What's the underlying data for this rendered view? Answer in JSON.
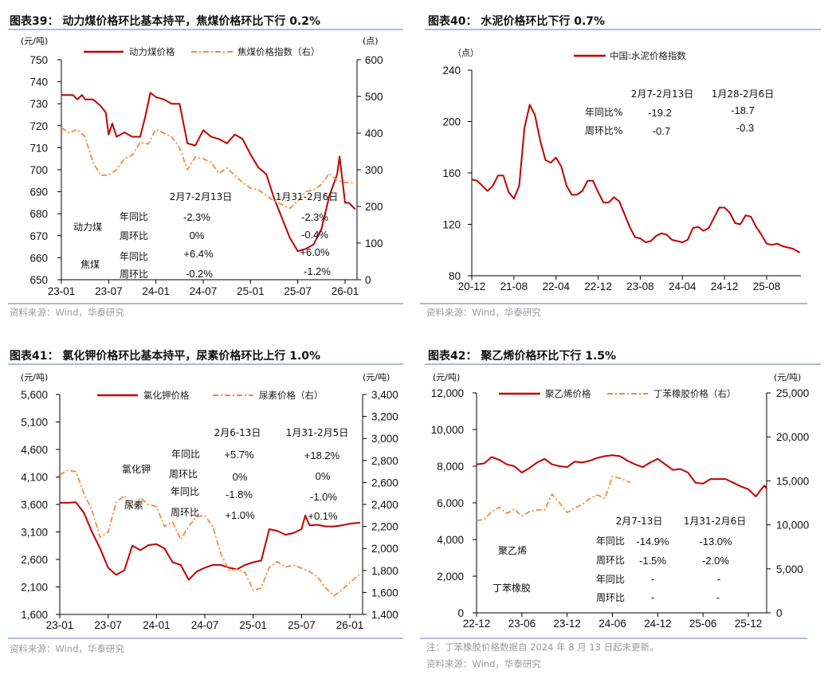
{
  "colors": {
    "primary_line": "#c00000",
    "secondary_line": "#f28a3c",
    "rule": "#7f93b5",
    "source_text": "#9a9a9a"
  },
  "source": "资料来源：Wind，华泰研究",
  "chart_data": [
    {
      "type": "line",
      "title": "图表39：  动力煤价格环比基本持平，焦煤价格环比下行 0.2%",
      "left_unit": "(元/吨)",
      "right_unit": "(点)",
      "x_ticks": [
        "23-01",
        "23-07",
        "24-01",
        "24-07",
        "25-01",
        "25-07",
        "26-01"
      ],
      "left_ylim": [
        650,
        750
      ],
      "left_ticks": [
        "650",
        "660",
        "670",
        "680",
        "690",
        "700",
        "710",
        "720",
        "730",
        "740",
        "750"
      ],
      "right_ylim": [
        0,
        600
      ],
      "right_ticks": [
        "0",
        "100",
        "200",
        "300",
        "400",
        "500",
        "600"
      ],
      "legend_position": "top",
      "series": [
        {
          "name": "动力煤价格",
          "axis": "left",
          "style": "solid",
          "x": [
            "2023-01",
            "2023-02-15",
            "2023-03",
            "2023-03-20",
            "2023-04",
            "2023-05",
            "2023-06",
            "2023-06-20",
            "2023-07",
            "2023-07-15",
            "2023-08",
            "2023-09",
            "2023-10",
            "2023-11",
            "2023-11-20",
            "2023-12-10",
            "2024-01",
            "2024-02",
            "2024-03",
            "2024-04",
            "2024-05",
            "2024-06",
            "2024-07",
            "2024-08",
            "2024-09",
            "2024-10",
            "2024-11",
            "2024-12",
            "2025-01",
            "2025-02",
            "2025-03",
            "2025-04",
            "2025-05",
            "2025-06",
            "2025-07",
            "2025-08",
            "2025-09",
            "2025-10",
            "2025-11",
            "2025-12",
            "2025-12-10",
            "2026-01",
            "2026-01-15",
            "2026-02-10"
          ],
          "y": [
            734,
            734,
            732,
            734,
            732,
            732,
            729,
            726,
            716,
            721,
            715,
            717,
            715,
            715,
            724,
            735,
            733,
            732,
            730,
            730,
            712,
            711,
            718,
            715,
            714,
            712,
            716,
            714,
            707,
            701,
            698,
            687,
            678,
            669,
            663,
            664,
            666,
            673,
            688,
            698,
            706,
            685,
            685,
            682
          ]
        },
        {
          "name": "焦煤价格指数（右）",
          "axis": "right",
          "style": "dashdot",
          "x": [
            "2023-01",
            "2023-02",
            "2023-03",
            "2023-04",
            "2023-05",
            "2023-06",
            "2023-07",
            "2023-08",
            "2023-09",
            "2023-10",
            "2023-11",
            "2023-12",
            "2024-01",
            "2024-02",
            "2024-03",
            "2024-04",
            "2024-05",
            "2024-06",
            "2024-07",
            "2024-08",
            "2024-09",
            "2024-10",
            "2024-11",
            "2024-12",
            "2025-01",
            "2025-02",
            "2025-03",
            "2025-04",
            "2025-05",
            "2025-06",
            "2025-07",
            "2025-08",
            "2025-09",
            "2025-10",
            "2025-11",
            "2025-12",
            "2026-01",
            "2026-02-10"
          ],
          "y": [
            415,
            400,
            410,
            390,
            320,
            285,
            285,
            300,
            330,
            340,
            375,
            370,
            410,
            400,
            390,
            360,
            300,
            335,
            330,
            320,
            290,
            305,
            285,
            265,
            250,
            245,
            230,
            215,
            205,
            195,
            215,
            240,
            245,
            260,
            290,
            270,
            265,
            265
          ]
        }
      ],
      "annotation": {
        "headers": [
          "2月7-2月13日",
          "1月31-2月6日"
        ],
        "groups": [
          "动力煤",
          "焦煤"
        ],
        "rows": [
          {
            "label": "年同比",
            "values": [
              "-2.3%",
              "-2.3%"
            ]
          },
          {
            "label": "周环比",
            "values": [
              "0%",
              "-0.4%"
            ]
          },
          {
            "label": "年同比",
            "values": [
              "+6.4%",
              "+6.0%"
            ]
          },
          {
            "label": "周环比",
            "values": [
              "-0.2%",
              "-1.2%"
            ]
          }
        ]
      }
    },
    {
      "type": "line",
      "title": "图表40：  水泥价格环比下行 0.7%",
      "left_unit": "（点）",
      "x_ticks": [
        "20-12",
        "21-08",
        "22-04",
        "22-12",
        "23-08",
        "24-04",
        "24-12",
        "25-08"
      ],
      "left_ylim": [
        80,
        240
      ],
      "left_ticks": [
        "80",
        "120",
        "160",
        "200",
        "240"
      ],
      "legend_position": "top",
      "series": [
        {
          "name": "中国:水泥价格指数",
          "axis": "left",
          "style": "solid",
          "x": [
            "2020-12",
            "2021-01",
            "2021-02",
            "2021-03",
            "2021-04",
            "2021-05",
            "2021-06",
            "2021-07",
            "2021-08",
            "2021-09",
            "2021-10",
            "2021-11",
            "2021-12",
            "2022-01",
            "2022-02",
            "2022-03",
            "2022-04",
            "2022-05",
            "2022-06",
            "2022-07",
            "2022-08",
            "2022-09",
            "2022-10",
            "2022-11",
            "2022-12",
            "2023-01",
            "2023-02",
            "2023-03",
            "2023-04",
            "2023-05",
            "2023-06",
            "2023-07",
            "2023-08",
            "2023-09",
            "2023-10",
            "2023-11",
            "2023-12",
            "2024-01",
            "2024-02",
            "2024-03",
            "2024-04",
            "2024-05",
            "2024-06",
            "2024-07",
            "2024-08",
            "2024-09",
            "2024-10",
            "2024-11",
            "2024-12",
            "2025-01",
            "2025-02",
            "2025-03",
            "2025-04",
            "2025-05",
            "2025-06",
            "2025-07",
            "2025-08",
            "2025-09",
            "2025-10",
            "2025-11",
            "2025-12",
            "2026-01",
            "2026-02-10"
          ],
          "y": [
            155,
            154,
            150,
            146,
            150,
            158,
            158,
            145,
            140,
            150,
            195,
            213,
            205,
            185,
            170,
            168,
            172,
            165,
            150,
            143,
            143,
            146,
            154,
            154,
            145,
            137,
            137,
            141,
            138,
            128,
            118,
            110,
            109,
            106,
            107,
            111,
            113,
            112,
            108,
            107,
            106,
            108,
            117,
            118,
            115,
            117,
            125,
            133,
            133,
            129,
            121,
            120,
            127,
            126,
            118,
            112,
            105,
            104,
            105,
            103,
            102,
            101,
            98
          ]
        }
      ],
      "annotation": {
        "headers": [
          "2月7-2月13日",
          "1月28-2月6日"
        ],
        "rows": [
          {
            "label": "年同比%",
            "values": [
              "-19.2",
              "-18.7"
            ]
          },
          {
            "label": "周环比%",
            "values": [
              "-0.7",
              "-0.3"
            ]
          }
        ]
      }
    },
    {
      "type": "line",
      "title": "图表41：  氯化钾价格环比基本持平，尿素价格环比上行 1.0%",
      "left_unit": "(元/吨)",
      "right_unit": "(元/吨)",
      "x_ticks": [
        "23-01",
        "23-07",
        "24-01",
        "24-07",
        "25-01",
        "25-07",
        "26-01"
      ],
      "left_ylim": [
        1600,
        5600
      ],
      "left_ticks": [
        "1,600",
        "2,100",
        "2,600",
        "3,100",
        "3,600",
        "4,100",
        "4,600",
        "5,100",
        "5,600"
      ],
      "right_ylim": [
        1400,
        3400
      ],
      "right_ticks": [
        "1,400",
        "1,600",
        "1,800",
        "2,000",
        "2,200",
        "2,400",
        "2,600",
        "2,800",
        "3,000",
        "3,200",
        "3,400"
      ],
      "legend_position": "top",
      "series": [
        {
          "name": "氯化钾价格",
          "axis": "left",
          "style": "solid",
          "x": [
            "2023-01",
            "2023-02",
            "2023-03",
            "2023-04",
            "2023-05",
            "2023-06",
            "2023-07",
            "2023-08",
            "2023-09",
            "2023-10",
            "2023-11",
            "2023-12",
            "2024-01",
            "2024-02",
            "2024-03",
            "2024-04",
            "2024-05",
            "2024-06",
            "2024-07",
            "2024-08",
            "2024-09",
            "2024-10",
            "2024-11",
            "2024-12",
            "2025-01",
            "2025-02",
            "2025-03",
            "2025-04",
            "2025-05",
            "2025-06",
            "2025-07",
            "2025-07-15",
            "2025-08",
            "2025-09",
            "2025-10",
            "2025-11",
            "2025-12",
            "2026-01",
            "2026-02-10"
          ],
          "y": [
            3630,
            3630,
            3640,
            3450,
            3100,
            2800,
            2450,
            2320,
            2400,
            2850,
            2770,
            2860,
            2880,
            2800,
            2550,
            2500,
            2230,
            2380,
            2450,
            2500,
            2500,
            2450,
            2420,
            2500,
            2550,
            2580,
            3150,
            3120,
            3050,
            3080,
            3150,
            3400,
            3220,
            3230,
            3200,
            3200,
            3220,
            3250,
            3270
          ]
        },
        {
          "name": "尿素价格（右）",
          "axis": "right",
          "style": "dashdot",
          "x": [
            "2023-01",
            "2023-02",
            "2023-03",
            "2023-04",
            "2023-05",
            "2023-06",
            "2023-07",
            "2023-08",
            "2023-09",
            "2023-10",
            "2023-11",
            "2023-12",
            "2024-01",
            "2024-02",
            "2024-03",
            "2024-04",
            "2024-05",
            "2024-06",
            "2024-07",
            "2024-08",
            "2024-09",
            "2024-10",
            "2024-11",
            "2024-12",
            "2025-01",
            "2025-02",
            "2025-03",
            "2025-04",
            "2025-05",
            "2025-06",
            "2025-07",
            "2025-08",
            "2025-09",
            "2025-10",
            "2025-11",
            "2025-12",
            "2026-01",
            "2026-02-10"
          ],
          "y": [
            2670,
            2710,
            2700,
            2500,
            2350,
            2100,
            2150,
            2420,
            2480,
            2370,
            2460,
            2400,
            2380,
            2200,
            2240,
            2080,
            2200,
            2290,
            2300,
            2200,
            1950,
            1800,
            1810,
            1780,
            1620,
            1640,
            1830,
            1880,
            1830,
            1850,
            1820,
            1790,
            1740,
            1640,
            1570,
            1620,
            1690,
            1770
          ]
        }
      ],
      "annotation": {
        "headers": [
          "2月6-13日",
          "1月31-2月5日"
        ],
        "groups": [
          "氯化钾",
          "尿素"
        ],
        "rows": [
          {
            "label": "年同比",
            "values": [
              "+5.7%",
              "+18.2%"
            ]
          },
          {
            "label": "周环比",
            "values": [
              "0%",
              "0%"
            ]
          },
          {
            "label": "年同比",
            "values": [
              "-1.8%",
              "-1.0%"
            ]
          },
          {
            "label": "周环比",
            "values": [
              "+1.0%",
              "+0.1%"
            ]
          }
        ]
      }
    },
    {
      "type": "line",
      "title": "图表42：  聚乙烯价格环比下行 1.5%",
      "left_unit": "(元/吨)",
      "right_unit": "(元/吨)",
      "x_ticks": [
        "22-12",
        "23-06",
        "23-12",
        "24-06",
        "24-12",
        "25-06",
        "25-12"
      ],
      "left_ylim": [
        0,
        12000
      ],
      "left_ticks": [
        "0",
        "2,000",
        "4,000",
        "6,000",
        "8,000",
        "10,000",
        "12,000"
      ],
      "right_ylim": [
        0,
        25000
      ],
      "right_ticks": [
        "0",
        "5,000",
        "10,000",
        "15,000",
        "20,000",
        "25,000"
      ],
      "legend_position": "top",
      "series": [
        {
          "name": "聚乙烯价格",
          "axis": "left",
          "style": "solid",
          "x": [
            "2022-12",
            "2023-01",
            "2023-02",
            "2023-03",
            "2023-04",
            "2023-05",
            "2023-06",
            "2023-07",
            "2023-08",
            "2023-09",
            "2023-10",
            "2023-11",
            "2023-12",
            "2024-01",
            "2024-02",
            "2024-03",
            "2024-04",
            "2024-05",
            "2024-06",
            "2024-07",
            "2024-08",
            "2024-09",
            "2024-10",
            "2024-11",
            "2024-12",
            "2025-01",
            "2025-02",
            "2025-03",
            "2025-04",
            "2025-05",
            "2025-06",
            "2025-07",
            "2025-08",
            "2025-09",
            "2025-10",
            "2025-11",
            "2025-12",
            "2026-01",
            "2026-01-20",
            "2026-02-05",
            "2026-02-15"
          ],
          "y": [
            8100,
            8150,
            8500,
            8350,
            8100,
            8000,
            7650,
            7900,
            8200,
            8400,
            8100,
            8000,
            7950,
            8250,
            8200,
            8300,
            8450,
            8550,
            8600,
            8550,
            8300,
            8100,
            7950,
            8200,
            8400,
            8100,
            7800,
            7850,
            7650,
            7100,
            7050,
            7300,
            7300,
            7300,
            7100,
            6900,
            6750,
            6350,
            6700,
            6950,
            6750
          ]
        },
        {
          "name": "丁苯橡胶价格（右）",
          "axis": "right",
          "style": "dashdot",
          "x": [
            "2022-12",
            "2023-01",
            "2023-02",
            "2023-03",
            "2023-04",
            "2023-05",
            "2023-06",
            "2023-07",
            "2023-08",
            "2023-09",
            "2023-10",
            "2023-11",
            "2023-12",
            "2024-01",
            "2024-02",
            "2024-03",
            "2024-04",
            "2024-05",
            "2024-06",
            "2024-07",
            "2024-08-13"
          ],
          "y": [
            10500,
            10600,
            11500,
            12000,
            11300,
            11800,
            11000,
            11500,
            11700,
            11700,
            13500,
            12500,
            11400,
            11900,
            12300,
            13000,
            13400,
            13000,
            15500,
            15300,
            14800
          ]
        }
      ],
      "annotation": {
        "headers": [
          "2月7-13日",
          "1月31-2月6日"
        ],
        "groups": [
          "聚乙烯",
          "丁苯橡胶"
        ],
        "rows": [
          {
            "label": "年同比",
            "values": [
              "-14.9%",
              "-13.0%"
            ]
          },
          {
            "label": "周环比",
            "values": [
              "-1.5%",
              "-2.0%"
            ]
          },
          {
            "label": "年同比",
            "values": [
              "-",
              "-"
            ]
          },
          {
            "label": "周环比",
            "values": [
              "-",
              "-"
            ]
          }
        ]
      },
      "note": "注：丁苯橡胶价格数据自 2024 年 8 月 13 日起未更新。"
    }
  ]
}
